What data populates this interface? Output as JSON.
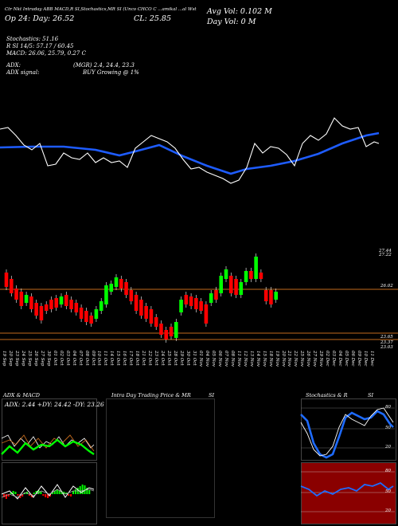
{
  "header": {
    "ticker_line": "Ctr Nkt Intraday ABB MACD,R SI,Stochastics,MR SI (Unco CHCO C ...amikal ...al Wst",
    "open_line": "Op 24: Day: 26.52",
    "close_line": "CL: 25.85",
    "avg_vol": "Avg Vol: 0.102  M",
    "day_vol": "Day Vol: 0  M",
    "stoch": "Stochastics: 51.16",
    "rsi": "R          SI 14/5: 57.17 / 60.45",
    "macd": "MACD: 26.06, 25.79, 0.27 C",
    "adx_label": "ADX:",
    "adx_values": "(MGR) 2.4, 24.4, 23.3",
    "adx_signal_label": "ADX  signal:",
    "adx_signal": "BUY Growing @ 1%"
  },
  "price_levels": {
    "top": "27.44",
    "top2": "27.22",
    "mid": "26.02",
    "low1": "23.65",
    "low2": "23.37",
    "low3": "23.03"
  },
  "dates": [
    "19 Sep",
    "20 Sep",
    "23 Sep",
    "24 Sep",
    "25 Sep",
    "26 Sep",
    "27 Sep",
    "30 Sep",
    "01 Oct",
    "02 Oct",
    "03 Oct",
    "04 Oct",
    "07 Oct",
    "08 Oct",
    "09 Oct",
    "10 Oct",
    "11 Oct",
    "14 Oct",
    "15 Oct",
    "16 Oct",
    "17 Oct",
    "18 Oct",
    "21 Oct",
    "22 Oct",
    "23 Oct",
    "24 Oct",
    "25 Oct",
    "28 Oct",
    "29 Oct",
    "30 Oct",
    "31 Oct",
    "01 Nov",
    "04 Nov",
    "05 Nov",
    "06 Nov",
    "07 Nov",
    "08 Nov",
    "11 Nov",
    "12 Nov",
    "13 Nov",
    "14 Nov",
    "15 Nov",
    "18 Nov",
    "19 Nov",
    "20 Nov",
    "21 Nov",
    "22 Nov",
    "25 Nov",
    "26 Nov",
    "27 Nov",
    "29 Nov",
    "02 Dec",
    "03 Dec",
    "04 Dec",
    "05 Dec",
    "06 Dec",
    "09 Dec",
    "10 Dec",
    "11 Dec"
  ],
  "panels": {
    "adx_title": "ADX  & MACD",
    "adx_readout": "ADX: 2.44  +DY: 24.42  -DY: 23.26",
    "intraday_title": "Intra  Day Trading Price  & MR",
    "intraday_si": "SI",
    "stoch_title": "Stochastics & R",
    "stoch_si": "SI"
  },
  "stoch_ticks": [
    "80",
    "50",
    "20"
  ],
  "rsi_ticks": [
    "80",
    "50",
    "20"
  ],
  "colors": {
    "up": "#00ff00",
    "down": "#ff0000",
    "ma": "#1e5cff",
    "line": "#ffffff",
    "level": "#c26a1c",
    "rsi_bg": "#8a0000",
    "stoch_line": "#1e6bff"
  }
}
